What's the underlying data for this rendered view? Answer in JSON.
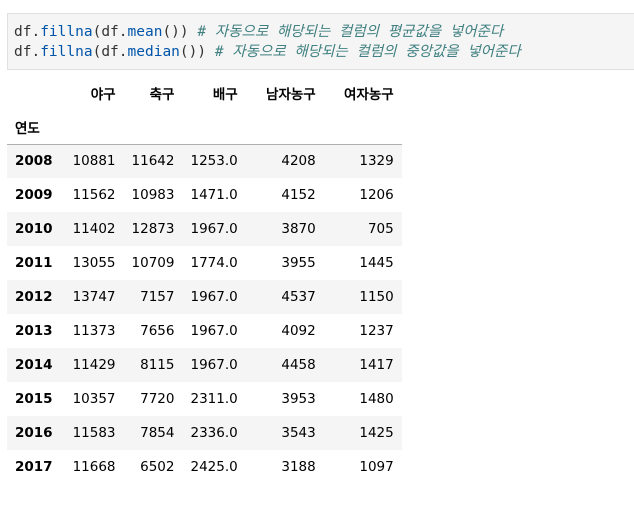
{
  "code_cell": {
    "line1": {
      "obj": "df",
      "method": "fillna",
      "arg_obj": "df",
      "arg_method": "mean",
      "comment": "# 자동으로 해당되는 컬럼의 평균값을 넣어준다"
    },
    "line2": {
      "obj": "df",
      "method": "fillna",
      "arg_obj": "df",
      "arg_method": "median",
      "comment": "# 자동으로 해당되는 컬럼의 중앙값을 넣어준다"
    }
  },
  "table": {
    "index_name": "연도",
    "columns": [
      "야구",
      "축구",
      "배구",
      "남자농구",
      "여자농구"
    ],
    "rows": [
      {
        "index": "2008",
        "values": [
          "10881",
          "11642",
          "1253.0",
          "4208",
          "1329"
        ]
      },
      {
        "index": "2009",
        "values": [
          "11562",
          "10983",
          "1471.0",
          "4152",
          "1206"
        ]
      },
      {
        "index": "2010",
        "values": [
          "11402",
          "12873",
          "1967.0",
          "3870",
          "705"
        ]
      },
      {
        "index": "2011",
        "values": [
          "13055",
          "10709",
          "1774.0",
          "3955",
          "1445"
        ]
      },
      {
        "index": "2012",
        "values": [
          "13747",
          "7157",
          "1967.0",
          "4537",
          "1150"
        ]
      },
      {
        "index": "2013",
        "values": [
          "11373",
          "7656",
          "1967.0",
          "4092",
          "1237"
        ]
      },
      {
        "index": "2014",
        "values": [
          "11429",
          "8115",
          "1967.0",
          "4458",
          "1417"
        ]
      },
      {
        "index": "2015",
        "values": [
          "10357",
          "7720",
          "2311.0",
          "3953",
          "1480"
        ]
      },
      {
        "index": "2016",
        "values": [
          "11583",
          "7854",
          "2336.0",
          "3543",
          "1425"
        ]
      },
      {
        "index": "2017",
        "values": [
          "11668",
          "6502",
          "2425.0",
          "3188",
          "1097"
        ]
      }
    ]
  }
}
